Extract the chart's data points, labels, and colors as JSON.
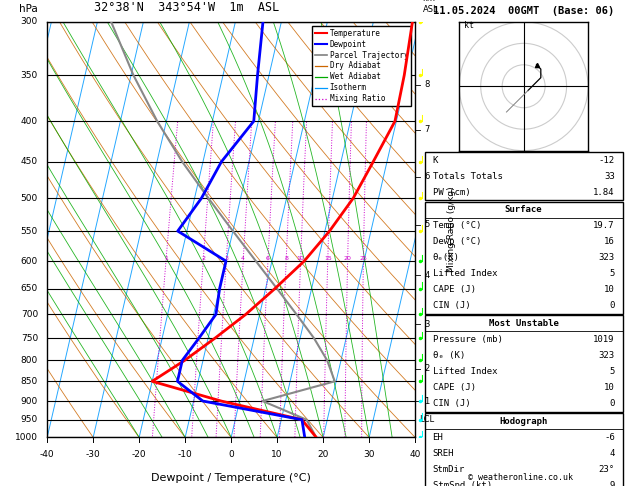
{
  "title_left": "32°38'N  343°54'W  1m  ASL",
  "title_right": "11.05.2024  00GMT  (Base: 06)",
  "xlabel": "Dewpoint / Temperature (°C)",
  "pressure_levels": [
    300,
    350,
    400,
    450,
    500,
    550,
    600,
    650,
    700,
    750,
    800,
    850,
    900,
    950,
    1000
  ],
  "tmin": -40,
  "tmax": 40,
  "pmin": 300,
  "pmax": 1000,
  "temp_C": [
    18.5,
    19.4,
    19.7,
    17.0,
    14.5,
    11.0,
    7.0,
    2.0,
    -3.0,
    -8.5,
    -14.0,
    -20.0,
    -4.0,
    14.5,
    18.5
  ],
  "dewp_C": [
    -14.0,
    -12.5,
    -11.0,
    -16.0,
    -18.5,
    -22.0,
    -10.0,
    -10.0,
    -9.5,
    -12.0,
    -14.5,
    -14.5,
    -8.0,
    14.5,
    16.0
  ],
  "parcel_C": [
    -47.0,
    -39.5,
    -32.0,
    -24.5,
    -17.0,
    -10.0,
    -3.5,
    2.5,
    8.0,
    13.0,
    17.0,
    19.7,
    5.0,
    15.5,
    18.5
  ],
  "t_pressures": [
    300,
    350,
    400,
    450,
    500,
    550,
    600,
    650,
    700,
    750,
    800,
    850,
    900,
    950,
    1000
  ],
  "temp_color": "#ff0000",
  "dewp_color": "#0000ff",
  "parcel_color": "#888888",
  "dry_adiabat_color": "#cc6600",
  "wet_adiabat_color": "#00aa00",
  "isotherm_color": "#0099ff",
  "mixing_ratio_color": "#cc00cc",
  "skew_per_decade": 40,
  "km_levels": [
    1,
    2,
    3,
    4,
    5,
    6,
    7,
    8
  ],
  "km_pressures": [
    900,
    820,
    720,
    625,
    540,
    470,
    410,
    360
  ],
  "lcl_pressure": 950,
  "mixing_ratios": [
    1,
    2,
    3,
    4,
    6,
    8,
    10,
    15,
    20,
    25
  ],
  "stats": {
    "K": -12,
    "Totals Totals": 33,
    "PW (cm)": 1.84,
    "Surface_Temp": 19.7,
    "Surface_Dewp": 16,
    "Surface_theta_e": 323,
    "Surface_LI": 5,
    "Surface_CAPE": 10,
    "Surface_CIN": 0,
    "MU_Pressure": 1019,
    "MU_theta_e": 323,
    "MU_LI": 5,
    "MU_CAPE": 10,
    "MU_CIN": 0,
    "Hodo_EH": -6,
    "Hodo_SREH": 4,
    "Hodo_StmDir": "23°",
    "Hodo_StmSpd": 9
  }
}
